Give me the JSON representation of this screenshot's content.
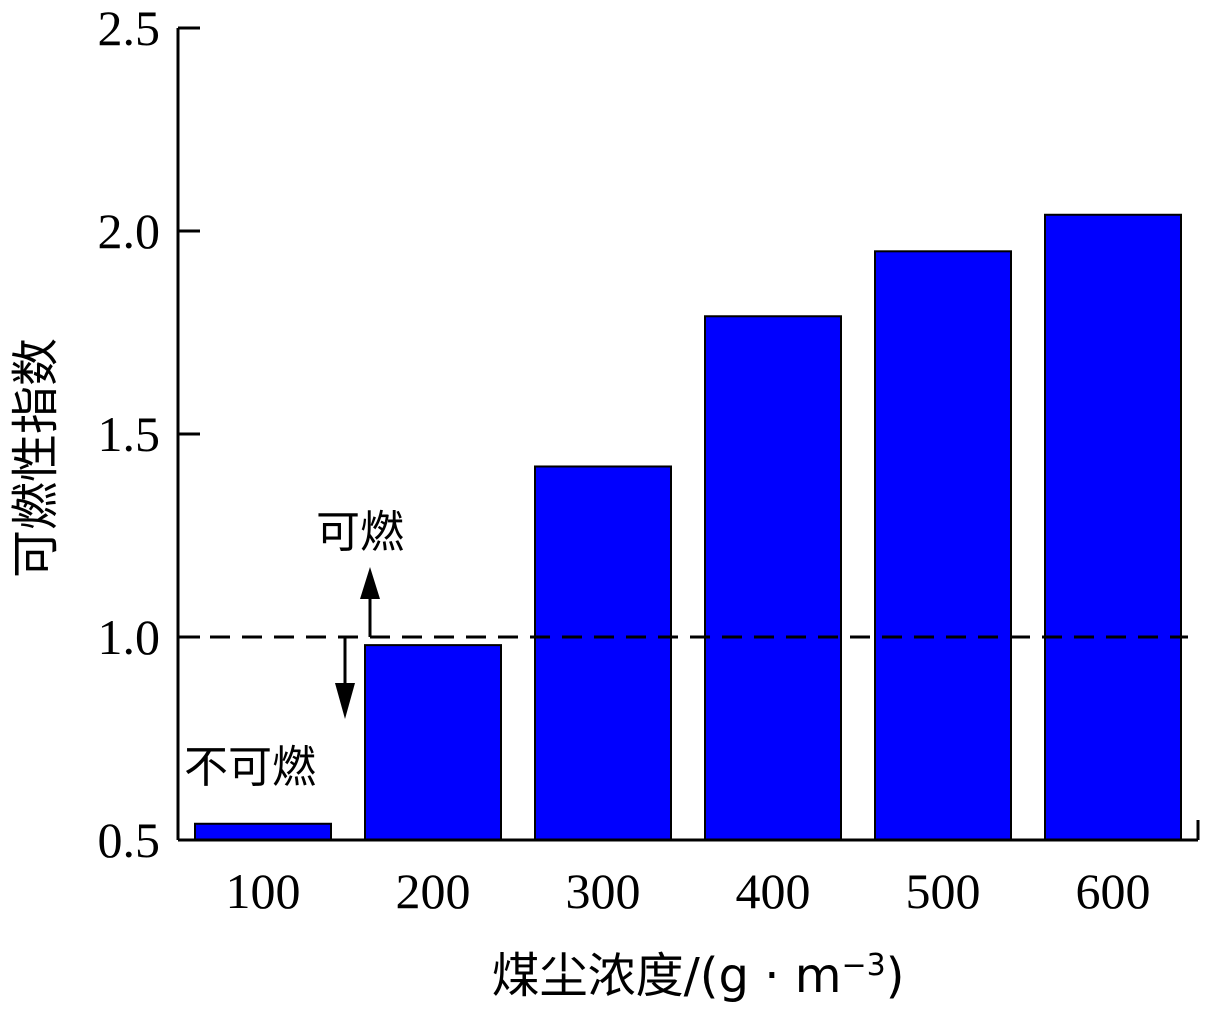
{
  "chart_data": {
    "type": "bar",
    "categories": [
      "100",
      "200",
      "300",
      "400",
      "500",
      "600"
    ],
    "values": [
      0.54,
      0.98,
      1.42,
      1.79,
      1.95,
      2.04
    ],
    "ylim": [
      0.5,
      2.5
    ],
    "yticks": [
      "0.5",
      "1.0",
      "1.5",
      "2.0",
      "2.5"
    ],
    "xlabel": "煤尘浓度/(g · m⁻³)",
    "xlabel_main": "煤尘浓度/(g · m",
    "xlabel_sup": "−3",
    "xlabel_close": ")",
    "ylabel": "可燃性指数",
    "threshold": 1.0,
    "annotations": {
      "above": "可燃",
      "below": "不可燃"
    },
    "bar_color": "#0000ff",
    "grid": false
  }
}
